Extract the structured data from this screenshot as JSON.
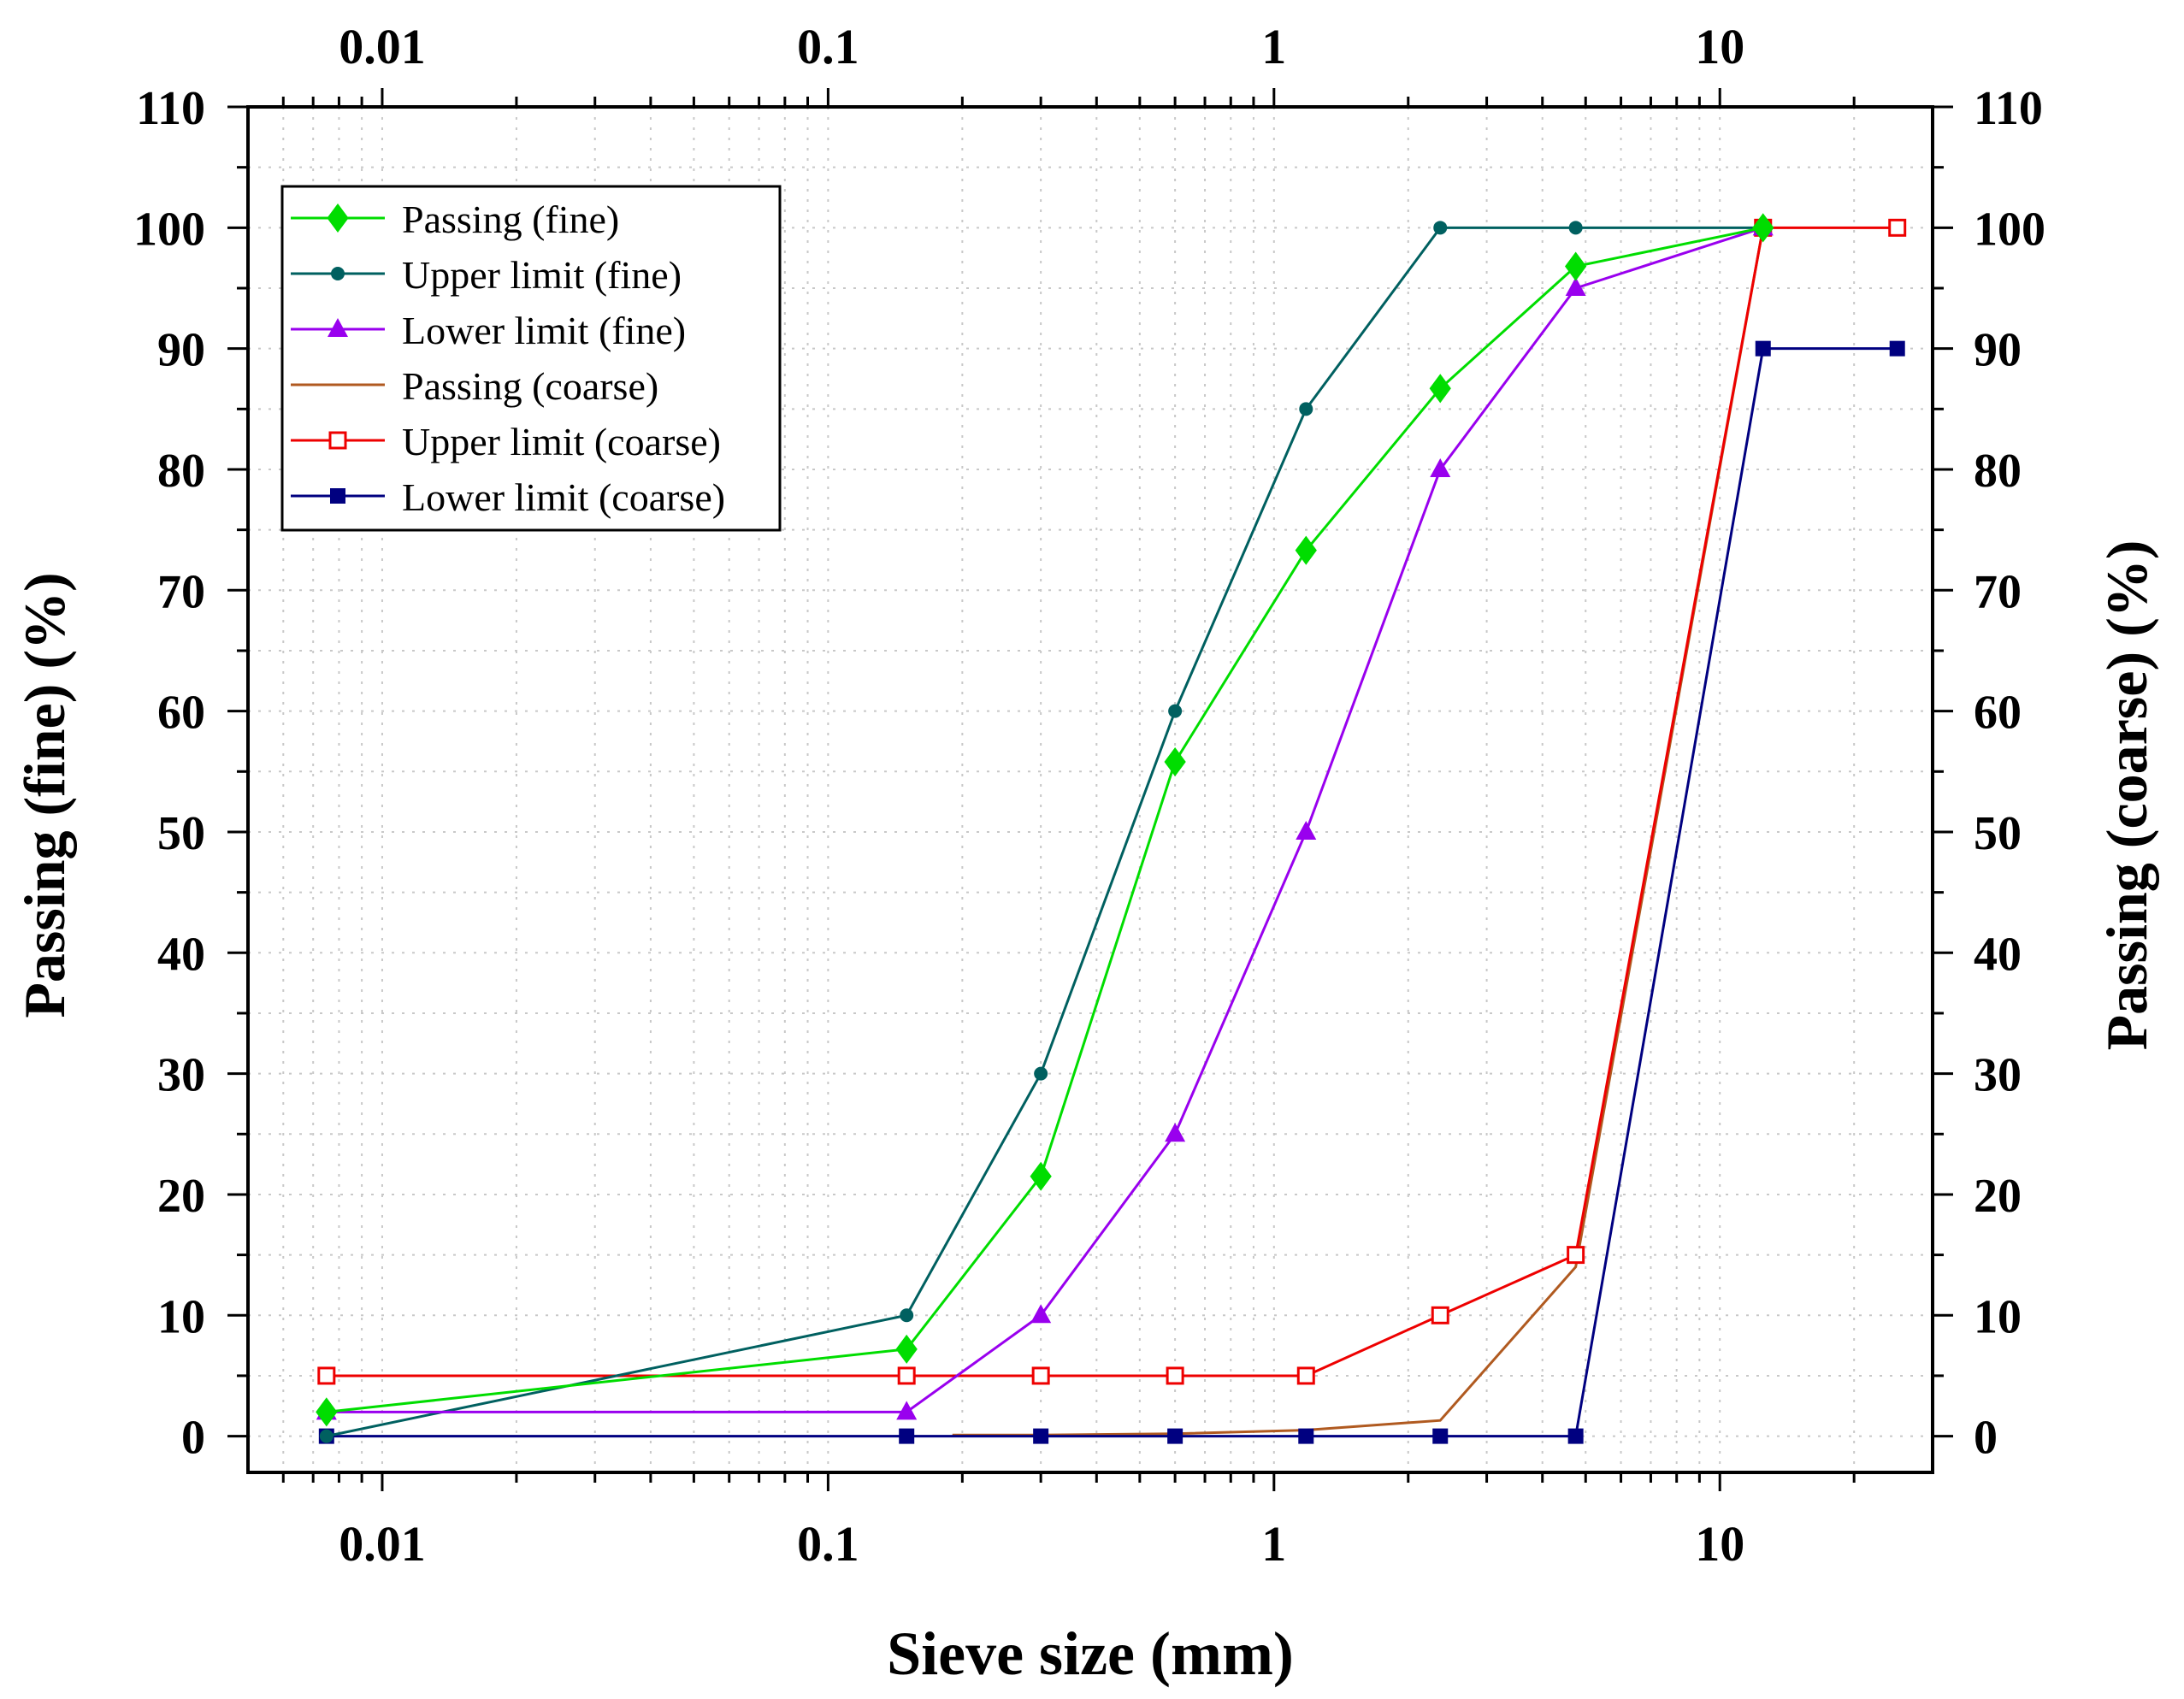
{
  "chart_data": {
    "type": "line",
    "xscale": "log",
    "xlabel": "Sieve size (mm)",
    "ylabel_left": "Passing (fine) (%)",
    "ylabel_right": "Passing (coarse) (%)",
    "xlim": [
      0.005,
      30
    ],
    "ylim": [
      -3,
      110
    ],
    "x_ticks": [
      0.01,
      0.1,
      1,
      10
    ],
    "x_tick_labels": [
      "0.01",
      "0.1",
      "1",
      "10"
    ],
    "y_ticks": [
      0,
      10,
      20,
      30,
      40,
      50,
      60,
      70,
      80,
      90,
      100,
      110
    ],
    "y_tick_labels": [
      "0",
      "10",
      "20",
      "30",
      "40",
      "50",
      "60",
      "70",
      "80",
      "90",
      "100",
      "110"
    ],
    "grid": true,
    "legend_position": "top-left",
    "series": [
      {
        "name": "Passing (fine)",
        "color": "#00dd00",
        "marker": "diamond",
        "x": [
          0.0075,
          0.15,
          0.3,
          0.6,
          1.18,
          2.36,
          4.75,
          12.5
        ],
        "y": [
          2,
          7.2,
          21.5,
          55.8,
          73.3,
          86.7,
          96.8,
          100
        ]
      },
      {
        "name": "Upper limit (fine)",
        "color": "#006060",
        "marker": "dot",
        "x": [
          0.0075,
          0.15,
          0.3,
          0.6,
          1.18,
          2.36,
          4.75,
          12.5
        ],
        "y": [
          0,
          10,
          30,
          60,
          85,
          100,
          100,
          100
        ]
      },
      {
        "name": "Lower limit (fine)",
        "color": "#9900ee",
        "marker": "triangle",
        "x": [
          0.0075,
          0.15,
          0.3,
          0.6,
          1.18,
          2.36,
          4.75,
          12.5
        ],
        "y": [
          2,
          2,
          10,
          25,
          50,
          80,
          95,
          100
        ]
      },
      {
        "name": "Passing (coarse)",
        "color": "#b05a20",
        "marker": "none",
        "x": [
          0.19,
          0.3,
          0.6,
          1.18,
          2.36,
          4.75,
          12.5
        ],
        "y": [
          0.1,
          0.1,
          0.2,
          0.5,
          1.3,
          14,
          100
        ]
      },
      {
        "name": "Upper limit (coarse)",
        "color": "#ee0000",
        "marker": "open-square",
        "x": [
          0.0075,
          0.15,
          0.3,
          0.6,
          1.18,
          2.36,
          4.75,
          12.5,
          25
        ],
        "y": [
          5,
          5,
          5,
          5,
          5,
          10,
          15,
          100,
          100
        ]
      },
      {
        "name": "Lower limit (coarse)",
        "color": "#000080",
        "marker": "square",
        "x": [
          0.0075,
          0.15,
          0.3,
          0.6,
          1.18,
          2.36,
          4.75,
          12.5,
          25
        ],
        "y": [
          0,
          0,
          0,
          0,
          0,
          0,
          0,
          90,
          90
        ]
      }
    ]
  }
}
